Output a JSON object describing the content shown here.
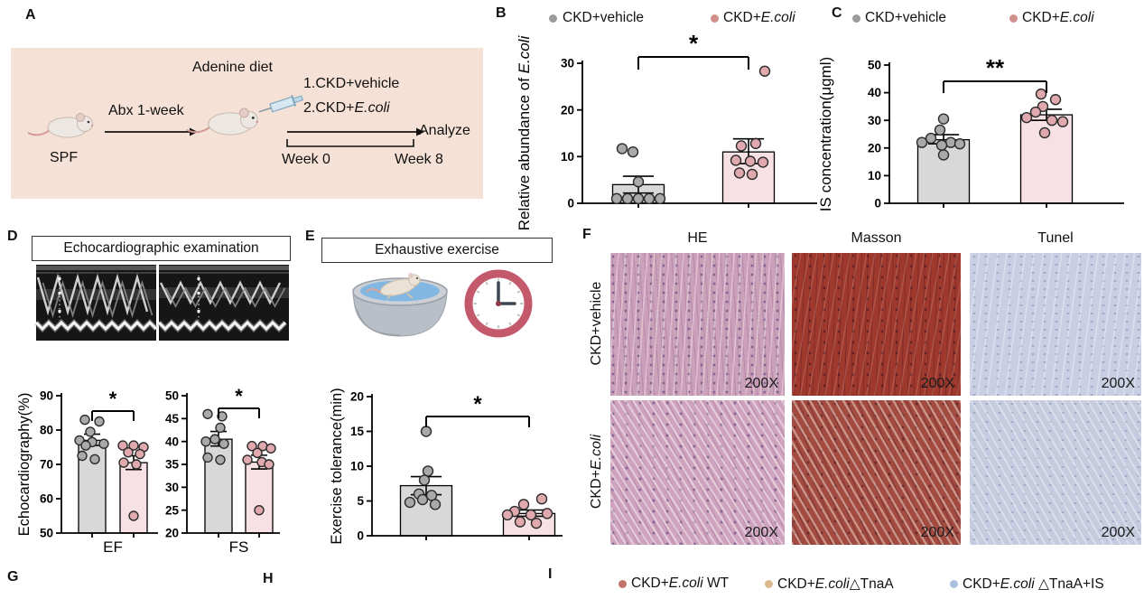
{
  "colors": {
    "panel_a_bg": "#f5e1d5",
    "bar_gray": "#d8d8d8",
    "bar_pink": "#f8e1e4",
    "dot_gray": "#a9a9a9",
    "dot_pink": "#dfa9ae",
    "legend_dot_gray": "#9b9b9b",
    "legend_dot_pink": "#d18f8c",
    "legend_dot_brick": "#c0746a",
    "legend_dot_tan": "#d9b98d",
    "legend_dot_blue": "#abc0de",
    "clock_ring": "#c4596b",
    "water_blue": "#82b7e2",
    "histology": {
      "he1": "#cba0b9",
      "he2": "#cfa2bd",
      "masson1": "#9f392e",
      "masson2": "#a34b41",
      "tunel1": "#c9cee3",
      "tunel2": "#c6ccdf"
    }
  },
  "panelA": {
    "label": "A",
    "spf": "SPF",
    "abx": "Abx 1-week",
    "adenine_diet": "Adenine diet",
    "group1": "1.CKD+vehicle",
    "group2_pre": "2.CKD+",
    "group2_it": "E.coli",
    "analyze": "Analyze",
    "week0": "Week 0",
    "week8": "Week 8"
  },
  "legendBC": {
    "item1": {
      "pre": "CKD+vehicle",
      "it": ""
    },
    "item2": {
      "pre": "CKD+",
      "it": "E.coli"
    }
  },
  "panelB": {
    "label": "B"
  },
  "panelC": {
    "label": "C"
  },
  "panelD": {
    "label": "D",
    "box_title": "Echocardiographic examination"
  },
  "panelE": {
    "label": "E",
    "box_title": "Exhaustive exercise"
  },
  "panelF": {
    "label": "F",
    "col_headers": [
      "HE",
      "Masson",
      "Tunel"
    ],
    "row1": {
      "pre": "CKD+vehicle",
      "it": ""
    },
    "row2": {
      "pre": "CKD+",
      "it": "E.coli"
    },
    "magnification": "200X"
  },
  "panelG": {
    "label": "G"
  },
  "panelH": {
    "label": "H"
  },
  "panelI": {
    "label": "I"
  },
  "legendI": {
    "item1": {
      "pre": "CKD+",
      "it": "E.coli",
      "post": " WT"
    },
    "item2": {
      "pre": "CKD+",
      "it": "E.coli",
      "post": "△TnaA"
    },
    "item3": {
      "pre": "CKD+",
      "it": "E.coli",
      "post": " △TnaA+IS"
    }
  },
  "chart_data": [
    {
      "id": "B",
      "type": "bar",
      "ylabel_pre": "Relative abundance of ",
      "ylabel_it": "E.coli",
      "groups": [
        "CKD+vehicle",
        "CKD+E.coli"
      ],
      "ylim": [
        0,
        30
      ],
      "yticks": [
        0,
        10,
        20,
        30
      ],
      "bar_values": [
        4,
        11
      ],
      "error_low": [
        2.2,
        8.5
      ],
      "error_high": [
        5.8,
        13.8
      ],
      "points": [
        [
          11.7,
          11,
          4.6,
          1,
          1,
          1,
          1,
          1
        ],
        [
          28.3,
          12.8,
          12.3,
          9.2,
          9,
          8.8,
          6.5,
          6.2
        ]
      ],
      "significance": "*"
    },
    {
      "id": "C",
      "type": "bar",
      "ylabel_pre": "IS concentration(μgml)",
      "ylabel_it": "",
      "groups": [
        "CKD+vehicle",
        "CKD+E.coli"
      ],
      "ylim": [
        0,
        50
      ],
      "yticks": [
        0,
        10,
        20,
        30,
        40,
        50
      ],
      "bar_values": [
        23,
        32
      ],
      "error_low": [
        21.5,
        30
      ],
      "error_high": [
        24.8,
        34
      ],
      "points": [
        [
          30.5,
          26.5,
          23.5,
          22,
          22,
          21.5,
          21,
          17.5
        ],
        [
          39.5,
          37.5,
          35,
          33,
          31,
          30,
          29.5,
          25.5
        ]
      ],
      "significance": "**"
    },
    {
      "id": "EF",
      "type": "bar",
      "xlabel": "EF",
      "ylabel_pre": "Echocardiography(%)",
      "ylabel_it": "",
      "groups": [
        "CKD+vehicle",
        "CKD+E.coli"
      ],
      "ylim": [
        50,
        90
      ],
      "yticks": [
        50,
        60,
        70,
        80,
        90
      ],
      "bar_values": [
        77,
        70.5
      ],
      "error_low": [
        75.5,
        68.5
      ],
      "error_high": [
        78.8,
        72.5
      ],
      "points": [
        [
          83,
          82.5,
          79.5,
          77,
          76.5,
          76,
          75.5,
          72.5,
          71.5
        ],
        [
          75.5,
          75.5,
          75,
          73.5,
          73,
          70.5,
          70,
          55
        ]
      ],
      "significance": "*"
    },
    {
      "id": "FS",
      "type": "bar",
      "xlabel": "FS",
      "groups": [
        "CKD+vehicle",
        "CKD+E.coli"
      ],
      "ylim": [
        20,
        50
      ],
      "yticks": [
        20,
        25,
        30,
        35,
        40,
        45,
        50
      ],
      "bar_values": [
        40.5,
        35.5
      ],
      "error_low": [
        39,
        34
      ],
      "error_high": [
        42.2,
        37
      ],
      "points": [
        [
          46,
          45.5,
          43,
          40.5,
          40,
          39.5,
          36.5,
          36
        ],
        [
          39,
          39,
          38.5,
          37.5,
          36,
          35.5,
          35,
          25
        ]
      ],
      "significance": "*"
    },
    {
      "id": "E",
      "type": "bar",
      "ylabel_pre": "Exercise tolerance(min)",
      "ylabel_it": "",
      "groups": [
        "CKD+vehicle",
        "CKD+E.coli"
      ],
      "ylim": [
        0,
        20
      ],
      "yticks": [
        0,
        5,
        10,
        15,
        20
      ],
      "bar_values": [
        7.2,
        3.2
      ],
      "error_low": [
        5.9,
        2.8
      ],
      "error_high": [
        8.5,
        3.7
      ],
      "points": [
        [
          15,
          9.3,
          8,
          6,
          5.8,
          5.2,
          4.8,
          4.5
        ],
        [
          5.3,
          4.5,
          3.5,
          3.2,
          3,
          3,
          2,
          1.8
        ]
      ],
      "significance": "*"
    }
  ]
}
